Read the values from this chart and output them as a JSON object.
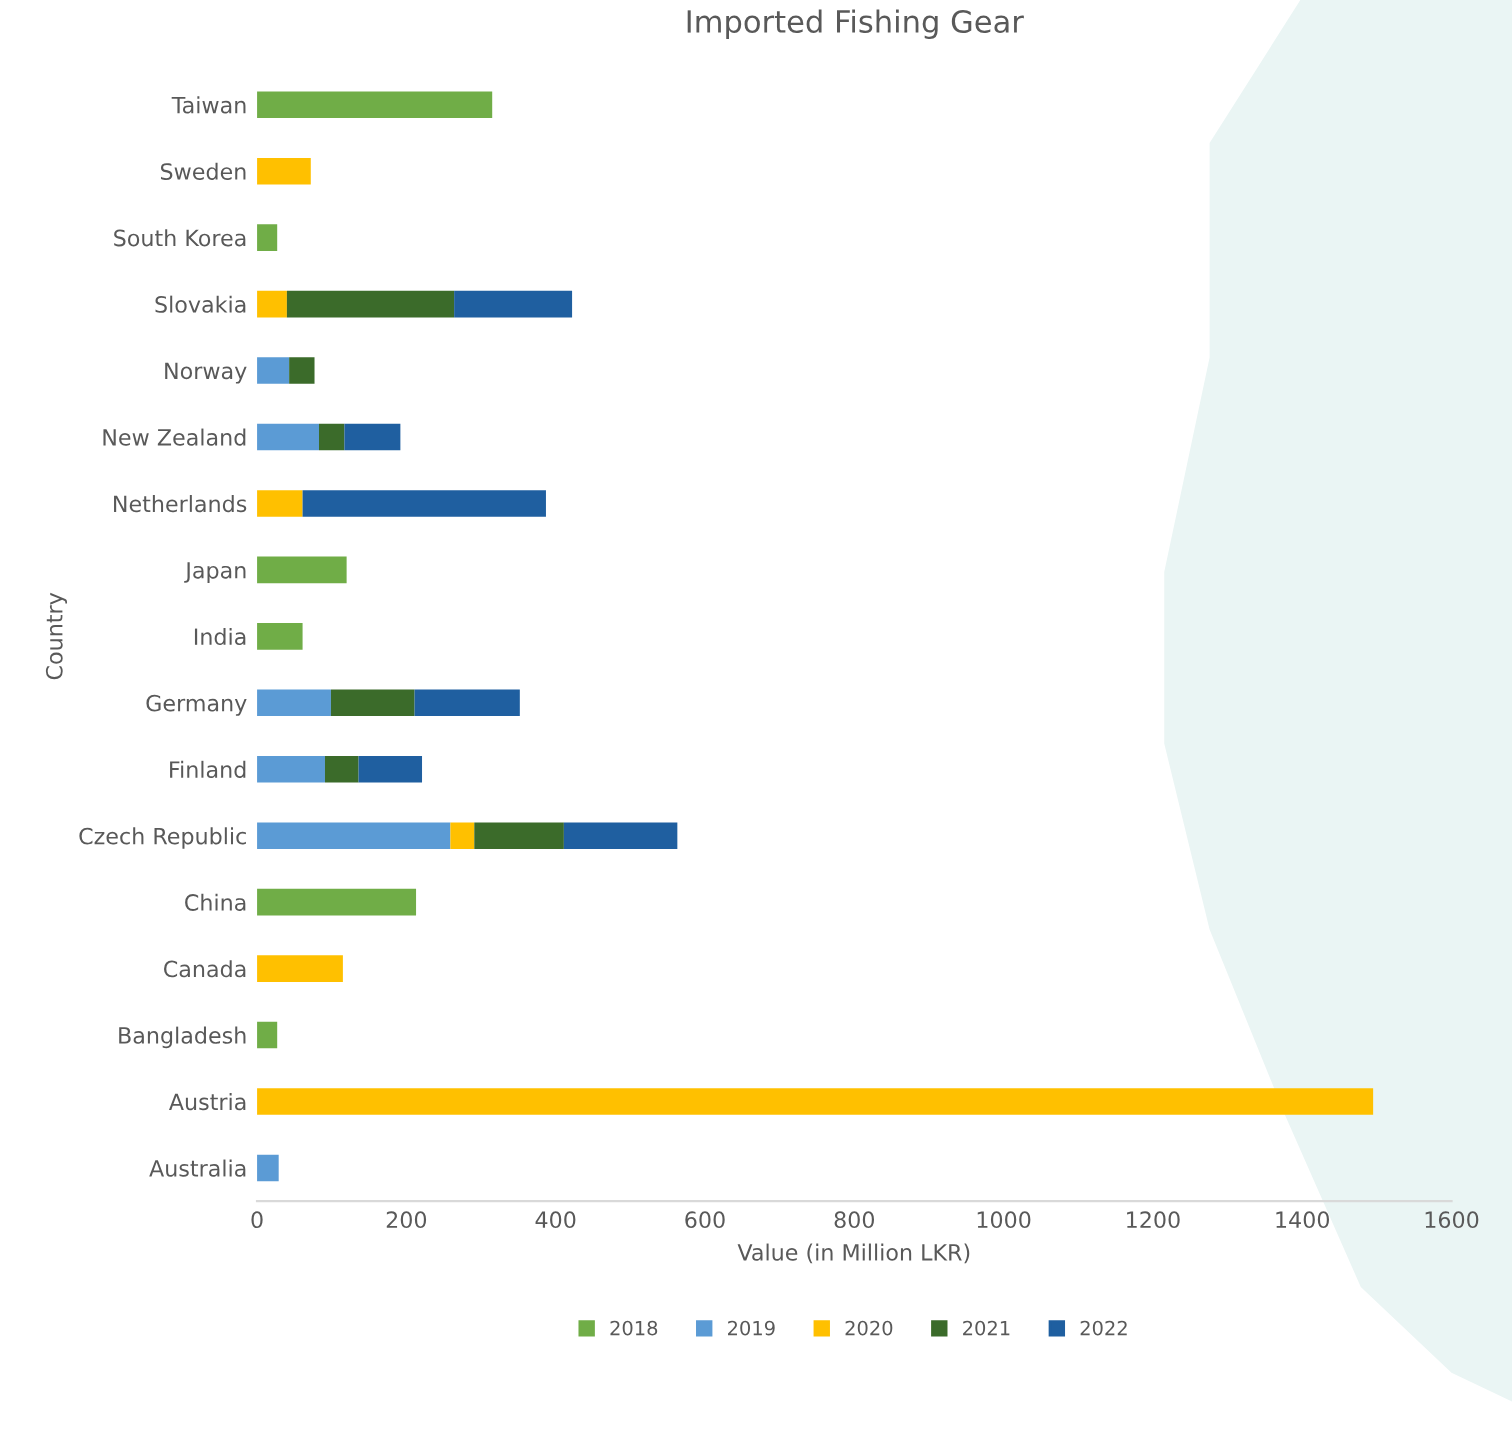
{
  "chart_data": {
    "type": "bar",
    "orientation": "horizontal",
    "stacked": true,
    "title": "Imported Fishing Gear",
    "xlabel": "Value (in Million LKR)",
    "ylabel": "Country",
    "categories": [
      "Taiwan",
      "Sweden",
      "South Korea",
      "Slovakia",
      "Norway",
      "New Zealand",
      "Netherlands",
      "Japan",
      "India",
      "Germany",
      "Finland",
      "Czech Republic",
      "China",
      "Canada",
      "Bangladesh",
      "Austria",
      "Australia"
    ],
    "series": [
      {
        "name": "2018",
        "color": "#70ad47",
        "values": [
          315,
          null,
          27,
          null,
          null,
          null,
          null,
          120,
          61,
          null,
          null,
          null,
          213,
          null,
          27,
          null,
          null
        ]
      },
      {
        "name": "2019",
        "color": "#5b9bd5",
        "values": [
          null,
          null,
          null,
          null,
          43,
          83,
          null,
          null,
          null,
          99,
          91,
          259,
          null,
          null,
          null,
          null,
          29
        ]
      },
      {
        "name": "2020",
        "color": "#ffc000",
        "values": [
          null,
          72,
          null,
          40,
          null,
          null,
          61,
          null,
          null,
          null,
          null,
          32,
          null,
          115,
          null,
          1495,
          null
        ]
      },
      {
        "name": "2021",
        "color": "#3b6b2a",
        "values": [
          null,
          null,
          null,
          224,
          34,
          34,
          null,
          null,
          null,
          112,
          45,
          120,
          null,
          null,
          null,
          null,
          null
        ]
      },
      {
        "name": "2022",
        "color": "#1f5fa0",
        "values": [
          null,
          null,
          null,
          158,
          null,
          75,
          326,
          null,
          null,
          141,
          85,
          152,
          null,
          null,
          null,
          null,
          null
        ]
      }
    ],
    "xlim": [
      0,
      1600
    ],
    "xticks": [
      0,
      200,
      400,
      600,
      800,
      1000,
      1200,
      1400,
      1600
    ],
    "grid": false,
    "legend": "bottom"
  }
}
